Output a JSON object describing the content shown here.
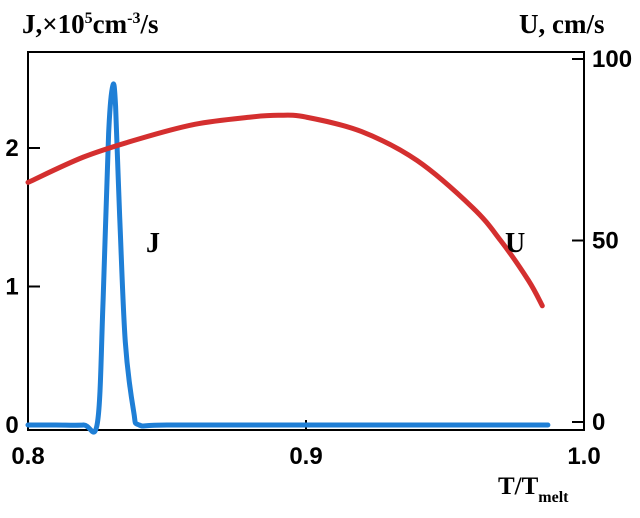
{
  "chart_data": {
    "type": "line",
    "left_axis_label": "J,×10",
    "left_axis_label_sup1": "5",
    "left_axis_label_mid": "cm",
    "left_axis_label_sup2": "-3",
    "left_axis_label_end": "/s",
    "right_axis_label": "U, cm/s",
    "xlabel_main": "T/T",
    "xlabel_sub": "melt",
    "xlim": [
      0.8,
      1.0
    ],
    "x_ticks": [
      "0.8",
      "0.9",
      "1.0"
    ],
    "y_left_lim": [
      0,
      2.5
    ],
    "y_left_ticks": [
      "0",
      "1",
      "2"
    ],
    "y_right_lim": [
      0,
      100
    ],
    "y_right_ticks": [
      "0",
      "50",
      "100"
    ],
    "grid": false,
    "series": [
      {
        "name": "J",
        "axis": "left",
        "color": "#1f7fd6",
        "x": [
          0.8,
          0.81,
          0.82,
          0.825,
          0.827,
          0.829,
          0.8305,
          0.8315,
          0.833,
          0.835,
          0.838,
          0.84,
          0.85,
          0.9,
          0.95,
          0.987
        ],
        "y": [
          0,
          0,
          0,
          0.02,
          0.9,
          2.1,
          2.45,
          2.3,
          1.5,
          0.6,
          0.1,
          0,
          0,
          0,
          0,
          0
        ]
      },
      {
        "name": "U",
        "axis": "right",
        "color": "#d42f2f",
        "x": [
          0.8,
          0.82,
          0.84,
          0.86,
          0.88,
          0.89,
          0.9,
          0.92,
          0.94,
          0.96,
          0.97,
          0.98,
          0.985
        ],
        "y": [
          66,
          73,
          78,
          82,
          84,
          84.5,
          84,
          80,
          72,
          59,
          50,
          39,
          32
        ]
      }
    ]
  }
}
